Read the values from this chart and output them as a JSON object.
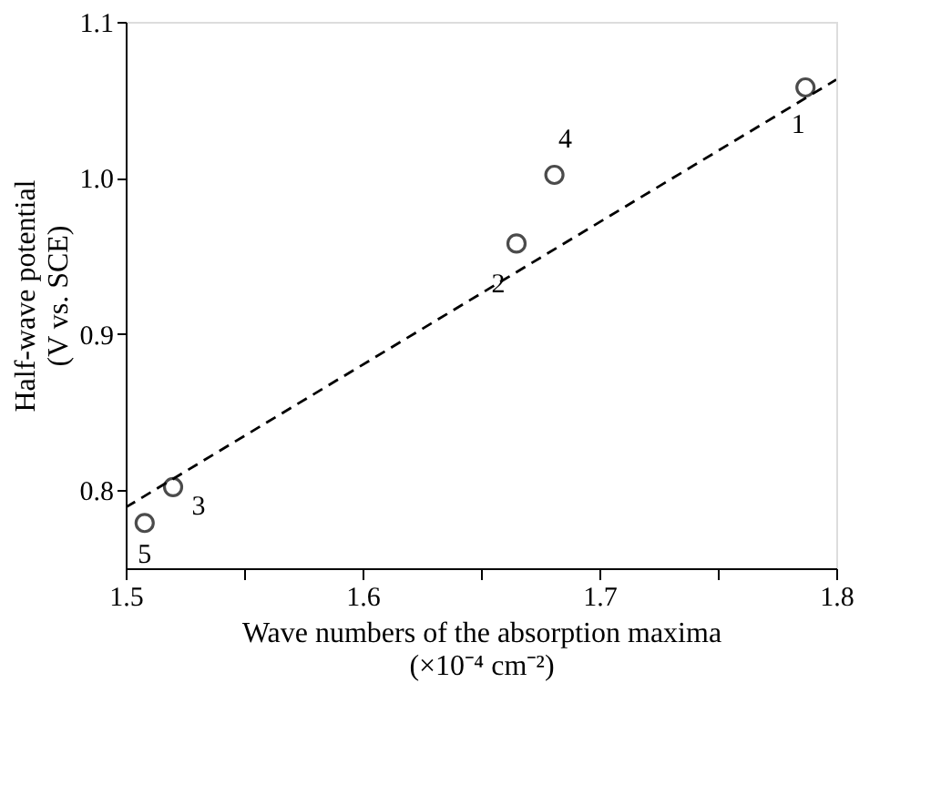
{
  "chart_data": {
    "type": "scatter",
    "xlabel": "Wave numbers of the absorption maxima\n(×10⁻⁴ cm⁻²)",
    "ylabel": "Half-wave potential\n(V vs. SCE)",
    "x": [
      1.787,
      1.665,
      1.52,
      1.681,
      1.508
    ],
    "series": [
      {
        "color": "#000000",
        "marker": "circle",
        "values": [
          1.058,
          0.958,
          0.802,
          1.002,
          0.779
        ]
      },
      {
        "type": "line",
        "color": "#000000",
        "line_style": "dashed",
        "marker": "none",
        "x": [
          1.5,
          1.8
        ],
        "values": [
          0.789,
          1.063
        ]
      }
    ],
    "annotations": [
      {
        "text": "1",
        "x": 1.787,
        "y": 1.058
      },
      {
        "text": "2",
        "x": 1.665,
        "y": 0.958
      },
      {
        "text": "3",
        "x": 1.52,
        "y": 0.802
      },
      {
        "text": "4",
        "x": 1.681,
        "y": 1.002
      },
      {
        "text": "5",
        "x": 1.508,
        "y": 0.779
      }
    ],
    "xlim": [
      1.5,
      1.8
    ],
    "ylim": [
      0.75,
      1.1
    ],
    "xticks": [
      1.5,
      {
        "value": 1.55,
        "label": null
      },
      1.6,
      {
        "value": 1.65,
        "label": null
      },
      1.7,
      {
        "value": 1.75,
        "label": null
      },
      1.8
    ],
    "yticks": [
      0.8,
      0.9,
      {
        "value": 1.0,
        "label": "1.0"
      },
      1.1
    ],
    "grid": false
  }
}
